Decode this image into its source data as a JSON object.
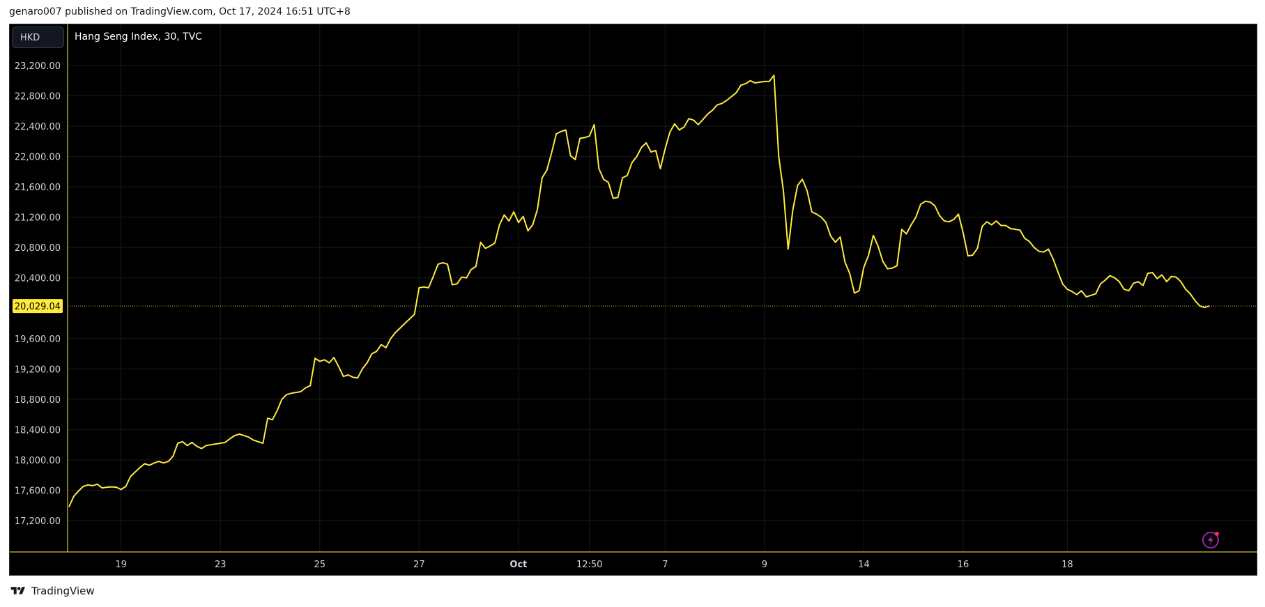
{
  "header": {
    "publisher_line": "genaro007 published on TradingView.com, Oct 17, 2024 16:51 UTC+8"
  },
  "toolbar": {
    "currency": "HKD"
  },
  "symbol": {
    "title": "Hang Seng Index, 30, TVC"
  },
  "footer": {
    "brand": "TradingView"
  },
  "colors": {
    "line": "#ffeb3b",
    "background": "#000000",
    "grid": "#1a1a1a",
    "axis_text": "#d1d4dc",
    "price_tag_bg": "#ffeb3b",
    "price_tag_text": "#000000"
  },
  "icons": {
    "logo": "tradingview-logo-icon",
    "flash": "lightning-icon"
  },
  "chart_data": {
    "type": "line",
    "title": "Hang Seng Index, 30, TVC",
    "ylim": [
      17000,
      23400
    ],
    "yticks": [
      17200,
      17600,
      18000,
      18400,
      18800,
      19200,
      19600,
      20400,
      20800,
      21200,
      21600,
      22000,
      22400,
      22800,
      23200
    ],
    "ytick_labels": [
      "17,200.00",
      "17,600.00",
      "18,000.00",
      "18,400.00",
      "18,800.00",
      "19,200.00",
      "19,600.00",
      "20,400.00",
      "20,800.00",
      "21,200.00",
      "21,600.00",
      "22,000.00",
      "22,400.00",
      "22,800.00",
      "23,200.00"
    ],
    "xticks": [
      {
        "label": "19",
        "index": 11
      },
      {
        "label": "23",
        "index": 32
      },
      {
        "label": "25",
        "index": 53
      },
      {
        "label": "27",
        "index": 74
      },
      {
        "label": "Oct",
        "index": 95,
        "bold": true
      },
      {
        "label": "12:50",
        "index": 110
      },
      {
        "label": "7",
        "index": 126
      },
      {
        "label": "9",
        "index": 147
      },
      {
        "label": "14",
        "index": 168
      },
      {
        "label": "16",
        "index": 189
      },
      {
        "label": "18",
        "index": 211
      }
    ],
    "last_price": 20029.04,
    "last_price_label": "20,029.04",
    "series": [
      {
        "values": [
          17380,
          17520,
          17590,
          17650,
          17670,
          17660,
          17680,
          17630,
          17640,
          17645,
          17640,
          17610,
          17650,
          17780,
          17840,
          17900,
          17950,
          17930,
          17960,
          17980,
          17960,
          17980,
          18050,
          18220,
          18240,
          18190,
          18230,
          18180,
          18150,
          18190,
          18200,
          18210,
          18220,
          18230,
          18280,
          18320,
          18340,
          18320,
          18300,
          18260,
          18240,
          18220,
          18550,
          18530,
          18650,
          18800,
          18860,
          18880,
          18890,
          18900,
          18950,
          18980,
          19340,
          19300,
          19320,
          19280,
          19350,
          19230,
          19100,
          19120,
          19090,
          19080,
          19200,
          19280,
          19400,
          19430,
          19520,
          19480,
          19600,
          19680,
          19740,
          19800,
          19860,
          19920,
          20270,
          20280,
          20270,
          20420,
          20580,
          20600,
          20580,
          20310,
          20320,
          20410,
          20400,
          20510,
          20550,
          20870,
          20790,
          20820,
          20860,
          21100,
          21230,
          21150,
          21270,
          21130,
          21210,
          21020,
          21100,
          21300,
          21720,
          21820,
          22050,
          22300,
          22330,
          22350,
          22010,
          21960,
          22240,
          22250,
          22270,
          22420,
          21840,
          21700,
          21660,
          21450,
          21460,
          21720,
          21750,
          21920,
          22000,
          22120,
          22180,
          22060,
          22080,
          21840,
          22100,
          22320,
          22430,
          22350,
          22390,
          22500,
          22480,
          22420,
          22490,
          22560,
          22610,
          22680,
          22700,
          22740,
          22790,
          22840,
          22940,
          22960,
          23000,
          22970,
          22980,
          22990,
          22990,
          23070,
          22000,
          21550,
          20780,
          21300,
          21620,
          21700,
          21550,
          21270,
          21240,
          21200,
          21130,
          20950,
          20870,
          20940,
          20610,
          20460,
          20200,
          20230,
          20540,
          20700,
          20960,
          20820,
          20620,
          20520,
          20530,
          20560,
          21040,
          20980,
          21100,
          21200,
          21370,
          21410,
          21400,
          21350,
          21220,
          21150,
          21140,
          21170,
          21240,
          20990,
          20690,
          20700,
          20790,
          21080,
          21140,
          21100,
          21150,
          21090,
          21090,
          21050,
          21040,
          21030,
          20920,
          20880,
          20800,
          20750,
          20740,
          20780,
          20650,
          20480,
          20320,
          20250,
          20220,
          20180,
          20230,
          20150,
          20170,
          20190,
          20320,
          20370,
          20430,
          20400,
          20350,
          20250,
          20230,
          20330,
          20350,
          20300,
          20460,
          20470,
          20390,
          20440,
          20350,
          20420,
          20410,
          20350,
          20250,
          20190,
          20100,
          20030,
          20010,
          20029
        ]
      }
    ]
  }
}
